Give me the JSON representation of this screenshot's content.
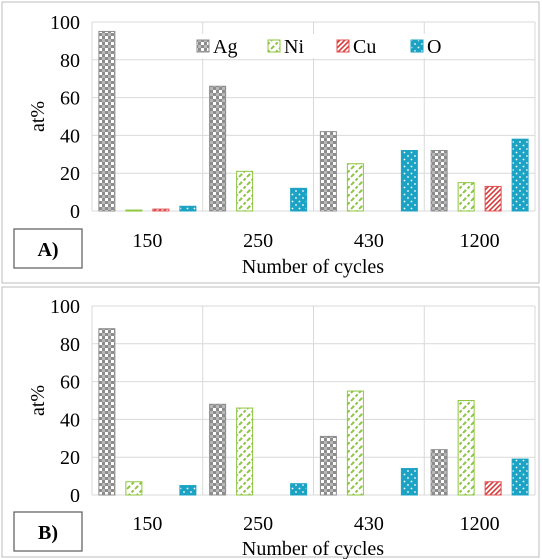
{
  "chart_data": [
    {
      "type": "bar",
      "panel_label": "A)",
      "categories": [
        "150",
        "250",
        "430",
        "1200"
      ],
      "series": [
        {
          "name": "Ag",
          "values": [
            95,
            66,
            42,
            32
          ]
        },
        {
          "name": "Ni",
          "values": [
            0.5,
            21,
            25,
            15
          ]
        },
        {
          "name": "Cu",
          "values": [
            1,
            0,
            0,
            13
          ]
        },
        {
          "name": "O",
          "values": [
            2.5,
            12,
            32,
            38
          ]
        }
      ],
      "xlabel": "Number of cycles",
      "ylabel": "at%",
      "ylim": [
        0,
        100
      ],
      "yticks": [
        "0",
        "20",
        "40",
        "60",
        "80",
        "100"
      ],
      "legend_position": "top",
      "grid": true
    },
    {
      "type": "bar",
      "panel_label": "B)",
      "categories": [
        "150",
        "250",
        "430",
        "1200"
      ],
      "series": [
        {
          "name": "Ag",
          "values": [
            88,
            48,
            31,
            24
          ]
        },
        {
          "name": "Ni",
          "values": [
            7,
            46,
            55,
            50
          ]
        },
        {
          "name": "Cu",
          "values": [
            0,
            0,
            0,
            7
          ]
        },
        {
          "name": "O",
          "values": [
            5,
            6,
            14,
            19
          ]
        }
      ],
      "xlabel": "Number of cycles",
      "ylabel": "at%",
      "ylim": [
        0,
        100
      ],
      "yticks": [
        "0",
        "20",
        "40",
        "60",
        "80",
        "100"
      ],
      "grid": true
    }
  ],
  "colors": {
    "Ag": "#8c8c8c",
    "Ni": "#8dc63f",
    "Cu": "#e05050",
    "O": "#1ca3c4"
  }
}
